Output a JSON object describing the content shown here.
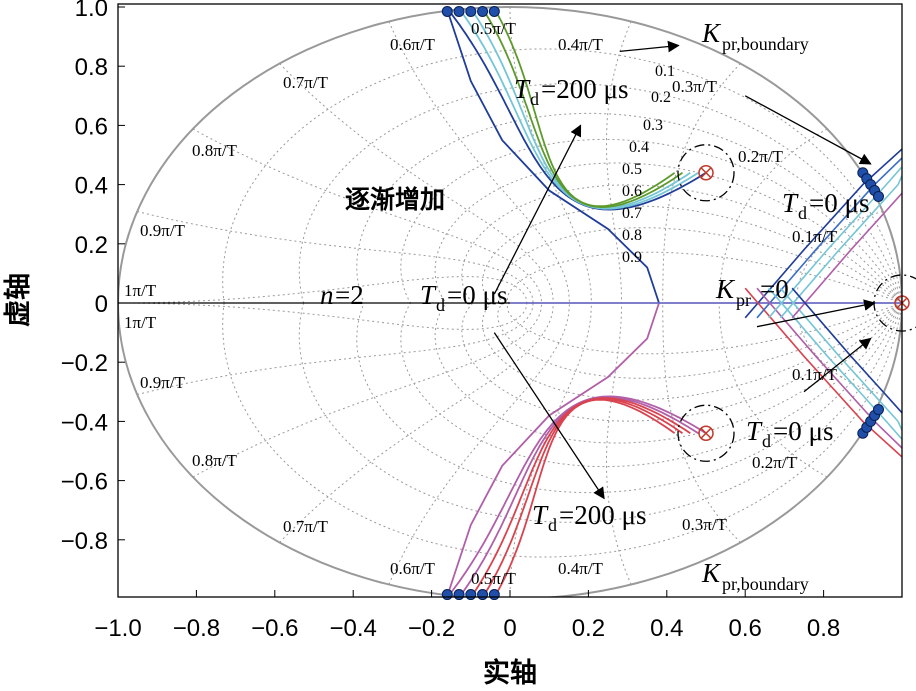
{
  "chart_data": {
    "type": "line",
    "title": "",
    "xlabel": "实轴",
    "ylabel": "虚轴",
    "xlim": [
      -1.0,
      1.0
    ],
    "ylim": [
      -1.0,
      1.0
    ],
    "grid": true,
    "x_ticks": [
      "−1.0",
      "−0.8",
      "−0.6",
      "−0.4",
      "−0.2",
      "0",
      "0.2",
      "0.4",
      "0.6",
      "0.8"
    ],
    "x_tick_values": [
      -1.0,
      -0.8,
      -0.6,
      -0.4,
      -0.2,
      0,
      0.2,
      0.4,
      0.6,
      0.8
    ],
    "y_ticks": [
      "1.0",
      "0.8",
      "0.6",
      "0.4",
      "0.2",
      "0",
      "−0.2",
      "−0.4",
      "−0.6",
      "−0.8"
    ],
    "y_tick_values": [
      1.0,
      0.8,
      0.6,
      0.4,
      0.2,
      0,
      -0.2,
      -0.4,
      -0.6,
      -0.8
    ],
    "natural_frequency_labels": [
      "1π/T",
      "0.9π/T",
      "0.8π/T",
      "0.7π/T",
      "0.6π/T",
      "0.5π/T",
      "0.4π/T",
      "0.3π/T",
      "0.2π/T",
      "0.1π/T"
    ],
    "damping_labels": [
      "0.1",
      "0.2",
      "0.3",
      "0.4",
      "0.5",
      "0.6",
      "0.7",
      "0.8",
      "0.9"
    ],
    "annotations": {
      "increasing": "逐渐增加",
      "n_italic": "n",
      "n_value": "=2",
      "T": "T",
      "d": "d",
      "td200": "=200 μs",
      "td0": "=0 μs",
      "K": "K",
      "pr": "pr",
      "pr_boundary": "pr,boundary",
      "kpr0": "=0"
    },
    "poles": [
      {
        "x": 0.5,
        "y": 0.44
      },
      {
        "x": 0.5,
        "y": -0.44
      },
      {
        "x": 1.0,
        "y": 0.0
      }
    ],
    "series": [
      {
        "color": "#1f3d99",
        "start": [
          0.935,
          0.36
        ],
        "boundary": [
          -0.16,
          0.99
        ],
        "branch": [
          0.93,
          0.37
        ]
      },
      {
        "color": "#74c6d6",
        "start": [
          0.935,
          0.36
        ],
        "boundary": [
          -0.13,
          0.992
        ],
        "branch": [
          0.92,
          0.38
        ]
      },
      {
        "color": "#74c6d6",
        "start": [
          0.935,
          0.36
        ],
        "boundary": [
          -0.1,
          0.995
        ],
        "branch": [
          0.91,
          0.4
        ]
      },
      {
        "color": "#5d9a2c",
        "start": [
          0.935,
          0.36
        ],
        "boundary": [
          -0.07,
          0.997
        ],
        "branch": [
          0.9,
          0.42
        ]
      },
      {
        "color": "#5d9a2c",
        "start": [
          0.935,
          0.36
        ],
        "boundary": [
          -0.04,
          0.999
        ],
        "branch": [
          0.89,
          0.44
        ]
      },
      {
        "color": "#b05fa8",
        "start": [
          0.935,
          -0.36
        ],
        "boundary": [
          -0.16,
          -0.99
        ],
        "branch": [
          0.93,
          -0.37
        ]
      },
      {
        "color": "#b05fa8",
        "start": [
          0.935,
          -0.36
        ],
        "boundary": [
          -0.13,
          -0.992
        ],
        "branch": [
          0.92,
          -0.38
        ]
      },
      {
        "color": "#d9434f",
        "start": [
          0.935,
          -0.36
        ],
        "boundary": [
          -0.1,
          -0.995
        ],
        "branch": [
          0.91,
          -0.4
        ]
      },
      {
        "color": "#d9434f",
        "start": [
          0.935,
          -0.36
        ],
        "boundary": [
          -0.07,
          -0.997
        ],
        "branch": [
          0.9,
          -0.42
        ]
      },
      {
        "color": "#d9434f",
        "start": [
          0.935,
          -0.36
        ],
        "boundary": [
          -0.04,
          -0.999
        ],
        "branch": [
          0.89,
          -0.44
        ]
      }
    ]
  }
}
